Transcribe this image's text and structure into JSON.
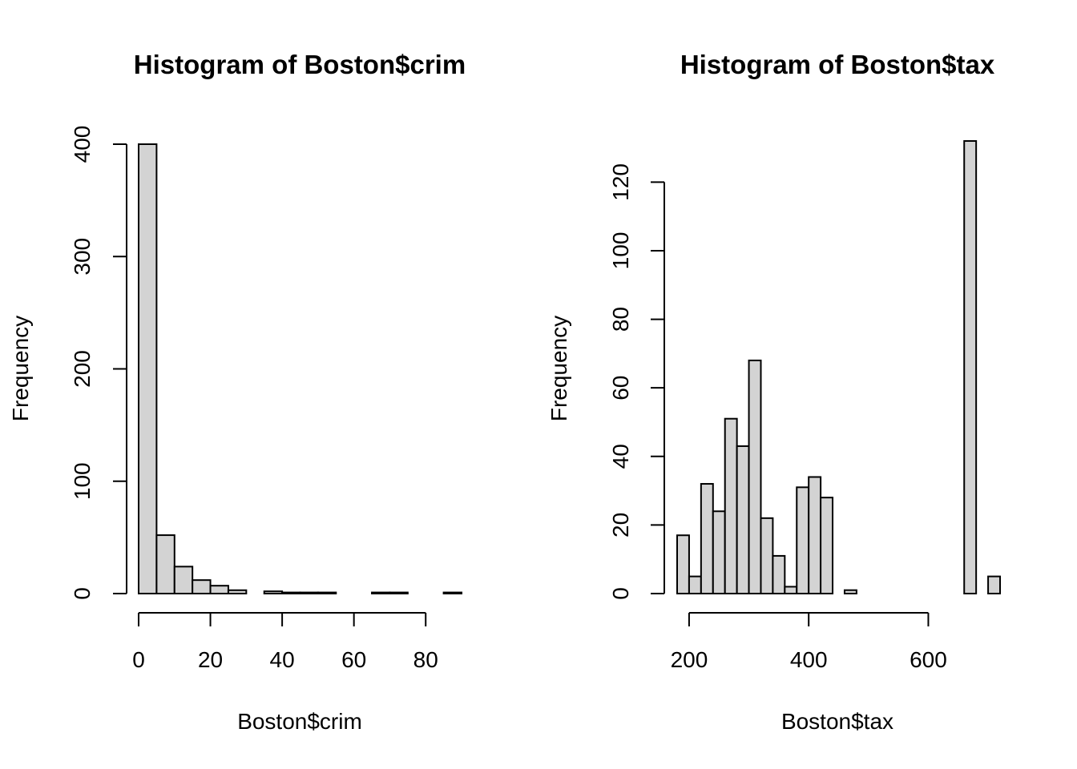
{
  "chart_data": [
    {
      "type": "bar",
      "title": "Histogram of Boston$crim",
      "xlabel": "Boston$crim",
      "ylabel": "Frequency",
      "bin_edges": [
        0,
        5,
        10,
        15,
        20,
        25,
        30,
        35,
        40,
        45,
        50,
        55,
        60,
        65,
        70,
        75,
        80,
        85,
        90
      ],
      "values": [
        400,
        52,
        24,
        12,
        7,
        3,
        0,
        2,
        1,
        1,
        1,
        0,
        0,
        1,
        1,
        0,
        0,
        1
      ],
      "xlim": [
        0,
        90
      ],
      "ylim": [
        0,
        400
      ],
      "x_ticks": [
        0,
        20,
        40,
        60,
        80
      ],
      "y_ticks": [
        0,
        100,
        200,
        300,
        400
      ],
      "x_tick_labels": [
        "0",
        "20",
        "40",
        "60",
        "80"
      ],
      "y_tick_labels": [
        "0",
        "100",
        "200",
        "300",
        "400"
      ]
    },
    {
      "type": "bar",
      "title": "Histogram of Boston$tax",
      "xlabel": "Boston$tax",
      "ylabel": "Frequency",
      "bin_edges": [
        180,
        200,
        220,
        240,
        260,
        280,
        300,
        320,
        340,
        360,
        380,
        400,
        420,
        440,
        460,
        480,
        500,
        520,
        540,
        560,
        580,
        600,
        620,
        640,
        660,
        680,
        700,
        720
      ],
      "values": [
        17,
        5,
        32,
        24,
        51,
        43,
        68,
        22,
        11,
        2,
        31,
        34,
        28,
        0,
        1,
        0,
        0,
        0,
        0,
        0,
        0,
        0,
        0,
        0,
        132,
        0,
        5
      ],
      "xlim": [
        180,
        720
      ],
      "ylim": [
        0,
        132
      ],
      "x_ticks": [
        200,
        400,
        600
      ],
      "y_ticks": [
        0,
        20,
        40,
        60,
        80,
        100,
        120
      ],
      "x_tick_labels": [
        "200",
        "400",
        "600"
      ],
      "y_tick_labels": [
        "0",
        "20",
        "40",
        "60",
        "80",
        "100",
        "120"
      ]
    }
  ]
}
